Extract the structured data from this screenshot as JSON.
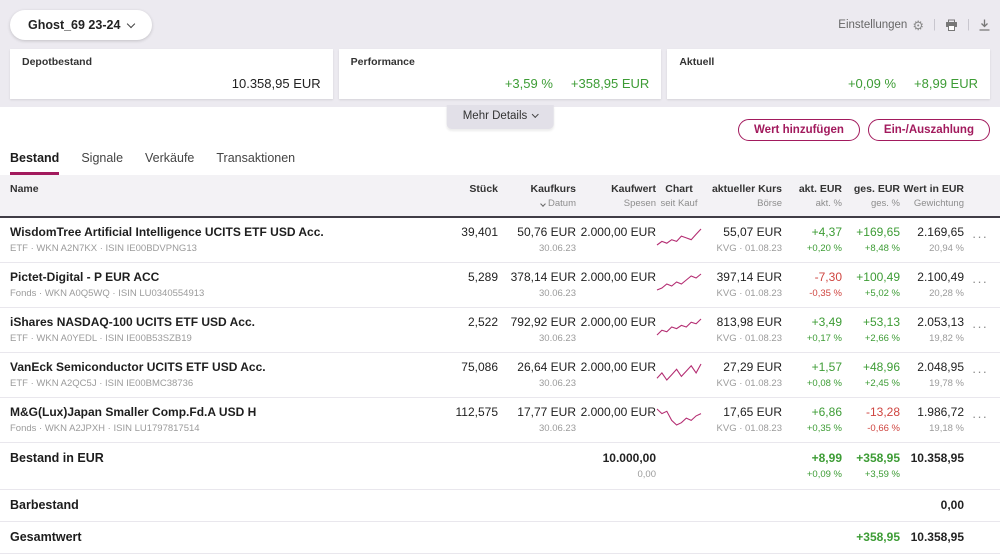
{
  "colors": {
    "accent": "#a21a5d",
    "positive": "#3d9c35",
    "negative": "#cf4540",
    "chart_line": "#b42d72"
  },
  "icons": {
    "gear": "⚙",
    "menu_dots": "···"
  },
  "header": {
    "portfolio_name": "Ghost_69 23-24",
    "settings_label": "Einstellungen",
    "more_details_label": "Mehr Details",
    "cards": [
      {
        "label": "Depotbestand",
        "value": "10.358,95 EUR"
      },
      {
        "label": "Performance",
        "percent": "+3,59 %",
        "value": "+358,95 EUR"
      },
      {
        "label": "Aktuell",
        "percent": "+0,09 %",
        "value": "+8,99 EUR"
      }
    ]
  },
  "actions": {
    "add_value": "Wert hinzufügen",
    "deposit": "Ein-/Auszahlung"
  },
  "tabs": [
    {
      "label": "Bestand"
    },
    {
      "label": "Signale"
    },
    {
      "label": "Verkäufe"
    },
    {
      "label": "Transaktionen"
    }
  ],
  "table": {
    "columns": {
      "name": "Name",
      "stueck": "Stück",
      "kaufkurs": "Kaufkurs",
      "kaufkurs_sub": "Datum",
      "kaufwert": "Kaufwert",
      "kaufwert_sub": "Spesen",
      "chart": "Chart",
      "chart_sub": "seit Kauf",
      "akt_kurs": "aktueller Kurs",
      "akt_kurs_sub": "Börse",
      "akt_eur": "akt. EUR",
      "akt_eur_sub": "akt. %",
      "ges_eur": "ges. EUR",
      "ges_eur_sub": "ges. %",
      "wert": "Wert in EUR",
      "wert_sub": "Gewichtung"
    },
    "rows": [
      {
        "name": "WisdomTree Artificial Intelligence UCITS ETF USD Acc.",
        "sub": "ETF · WKN A2N7KX · ISIN IE00BDVPNG13",
        "stueck": "39,401",
        "kaufkurs": "50,76 EUR",
        "kauf_datum": "30.06.23",
        "kaufwert": "2.000,00 EUR",
        "akt_kurs": "55,07 EUR",
        "boerse": "KVG · 01.08.23",
        "akt_eur": "+4,37",
        "akt_pct": "+0,20 %",
        "ges_eur": "+169,65",
        "ges_pct": "+8,48 %",
        "wert": "2.169,65",
        "gewichtung": "20,94 %",
        "spark": [
          3,
          5,
          4,
          6,
          5,
          8,
          7,
          6,
          9,
          12
        ]
      },
      {
        "name": "Pictet-Digital - P EUR ACC",
        "sub": "Fonds · WKN A0Q5WQ · ISIN LU0340554913",
        "stueck": "5,289",
        "kaufkurs": "378,14 EUR",
        "kauf_datum": "30.06.23",
        "kaufwert": "2.000,00 EUR",
        "akt_kurs": "397,14 EUR",
        "boerse": "KVG · 01.08.23",
        "akt_eur": "-7,30",
        "akt_pct": "-0,35 %",
        "ges_eur": "+100,49",
        "ges_pct": "+5,02 %",
        "wert": "2.100,49",
        "gewichtung": "20,28 %",
        "spark": [
          3,
          4,
          6,
          5,
          7,
          6,
          8,
          10,
          9,
          11
        ]
      },
      {
        "name": "iShares NASDAQ-100 UCITS ETF USD Acc.",
        "sub": "ETF · WKN A0YEDL · ISIN IE00B53SZB19",
        "stueck": "2,522",
        "kaufkurs": "792,92 EUR",
        "kauf_datum": "30.06.23",
        "kaufwert": "2.000,00 EUR",
        "akt_kurs": "813,98 EUR",
        "boerse": "KVG · 01.08.23",
        "akt_eur": "+3,49",
        "akt_pct": "+0,17 %",
        "ges_eur": "+53,13",
        "ges_pct": "+2,66 %",
        "wert": "2.053,13",
        "gewichtung": "19,82 %",
        "spark": [
          3,
          6,
          5,
          8,
          7,
          9,
          8,
          11,
          10,
          13
        ]
      },
      {
        "name": "VanEck Semiconductor UCITS ETF USD Acc.",
        "sub": "ETF · WKN A2QC5J · ISIN IE00BMC38736",
        "stueck": "75,086",
        "kaufkurs": "26,64 EUR",
        "kauf_datum": "30.06.23",
        "kaufwert": "2.000,00 EUR",
        "akt_kurs": "27,29 EUR",
        "boerse": "KVG · 01.08.23",
        "akt_eur": "+1,57",
        "akt_pct": "+0,08 %",
        "ges_eur": "+48,96",
        "ges_pct": "+2,45 %",
        "wert": "2.048,95",
        "gewichtung": "19,78 %",
        "spark": [
          4,
          7,
          3,
          6,
          9,
          5,
          8,
          11,
          7,
          12
        ]
      },
      {
        "name": "M&G(Lux)Japan Smaller Comp.Fd.A USD H",
        "sub": "Fonds · WKN A2JPXH · ISIN LU1797817514",
        "stueck": "112,575",
        "kaufkurs": "17,77 EUR",
        "kauf_datum": "30.06.23",
        "kaufwert": "2.000,00 EUR",
        "akt_kurs": "17,65 EUR",
        "boerse": "KVG · 01.08.23",
        "akt_eur": "+6,86",
        "akt_pct": "+0,35 %",
        "ges_eur": "-13,28",
        "ges_pct": "-0,66 %",
        "wert": "1.986,72",
        "gewichtung": "19,18 %",
        "spark": [
          10,
          8,
          9,
          5,
          3,
          4,
          6,
          5,
          7,
          8
        ]
      }
    ]
  },
  "summary": {
    "bestand": {
      "label": "Bestand in EUR",
      "kaufwert": "10.000,00",
      "spesen": "0,00",
      "akt_eur": "+8,99",
      "akt_pct": "+0,09 %",
      "ges_eur": "+358,95",
      "ges_pct": "+3,59 %",
      "wert": "10.358,95"
    },
    "barbestand": {
      "label": "Barbestand",
      "wert": "0,00"
    },
    "gesamtwert": {
      "label": "Gesamtwert",
      "ges_eur": "+358,95",
      "wert": "10.358,95"
    }
  }
}
